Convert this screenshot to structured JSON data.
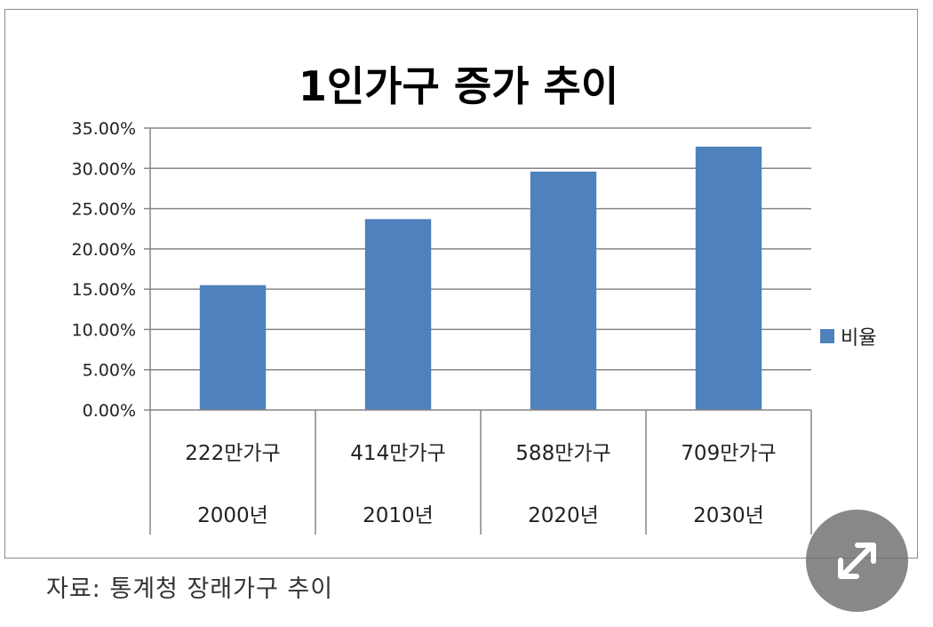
{
  "chart_data": {
    "type": "bar",
    "title": "1인가구 증가 추이",
    "categories": [
      "222만가구",
      "414만가구",
      "588만가구",
      "709만가구"
    ],
    "category_years": [
      "2000년",
      "2010년",
      "2020년",
      "2030년"
    ],
    "series": [
      {
        "name": "비율",
        "values": [
          15.5,
          23.7,
          29.6,
          32.7
        ],
        "color": "#4f81bd"
      }
    ],
    "ylim": [
      0,
      35
    ],
    "yticks": [
      "0.00%",
      "5.00%",
      "10.00%",
      "15.00%",
      "20.00%",
      "25.00%",
      "30.00%",
      "35.00%"
    ],
    "ytick_values": [
      0,
      5,
      10,
      15,
      20,
      25,
      30,
      35
    ],
    "grid": true,
    "legend_position": "right",
    "xlabel": "",
    "ylabel": ""
  },
  "source_note": "자료: 통계청 장래가구 추이",
  "expand_icon": "expand-arrows-icon"
}
